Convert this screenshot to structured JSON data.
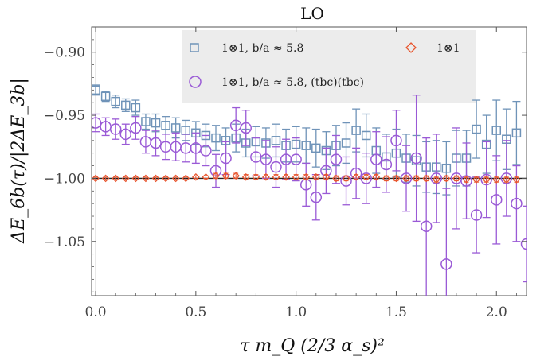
{
  "chart_data": {
    "type": "scatter",
    "title": "LO",
    "xlabel": "τ m_Q (2/3 α_s)²",
    "ylabel": "ΔE_6b(τ)/|2ΔE_3b|",
    "xlim": [
      -0.02,
      2.15
    ],
    "ylim": [
      -1.093,
      -0.88
    ],
    "x_ticks": [
      {
        "value": 0.0,
        "label": "0.0"
      },
      {
        "value": 0.5,
        "label": "0.5"
      },
      {
        "value": 1.0,
        "label": "1.0"
      },
      {
        "value": 1.5,
        "label": "1.5"
      },
      {
        "value": 2.0,
        "label": "2.0"
      }
    ],
    "y_ticks": [
      {
        "value": -0.9,
        "label": "−0.90"
      },
      {
        "value": -0.95,
        "label": "−0.95"
      },
      {
        "value": -1.0,
        "label": "−1.00"
      },
      {
        "value": -1.05,
        "label": "−1.05"
      }
    ],
    "reference_line": -1.0,
    "legend_position": "top",
    "series": [
      {
        "name": "1⊗1, b/a ≈ 5.8",
        "marker": "square",
        "color": "#6f93b8",
        "x": [
          0.0,
          0.05,
          0.1,
          0.15,
          0.2,
          0.25,
          0.3,
          0.35,
          0.4,
          0.45,
          0.5,
          0.55,
          0.6,
          0.65,
          0.7,
          0.75,
          0.8,
          0.85,
          0.9,
          0.95,
          1.0,
          1.05,
          1.1,
          1.15,
          1.2,
          1.25,
          1.3,
          1.35,
          1.4,
          1.45,
          1.5,
          1.55,
          1.6,
          1.65,
          1.7,
          1.75,
          1.8,
          1.85,
          1.9,
          1.95,
          2.0,
          2.05,
          2.1
        ],
        "y": [
          -0.93,
          -0.935,
          -0.939,
          -0.942,
          -0.944,
          -0.955,
          -0.956,
          -0.958,
          -0.96,
          -0.962,
          -0.964,
          -0.966,
          -0.968,
          -0.97,
          -0.968,
          -0.972,
          -0.971,
          -0.972,
          -0.97,
          -0.974,
          -0.973,
          -0.974,
          -0.976,
          -0.978,
          -0.974,
          -0.972,
          -0.962,
          -0.966,
          -0.978,
          -0.983,
          -0.98,
          -0.984,
          -0.986,
          -0.991,
          -0.991,
          -0.992,
          -0.984,
          -0.984,
          -0.961,
          -0.973,
          -0.962,
          -0.969,
          -0.964
        ],
        "err": [
          0.004,
          0.004,
          0.005,
          0.005,
          0.006,
          0.006,
          0.007,
          0.007,
          0.008,
          0.008,
          0.009,
          0.009,
          0.01,
          0.01,
          0.011,
          0.011,
          0.012,
          0.012,
          0.013,
          0.013,
          0.014,
          0.014,
          0.015,
          0.015,
          0.016,
          0.016,
          0.017,
          0.017,
          0.018,
          0.018,
          0.019,
          0.019,
          0.02,
          0.02,
          0.021,
          0.021,
          0.022,
          0.022,
          0.023,
          0.023,
          0.024,
          0.024,
          0.025
        ]
      },
      {
        "name": "1⊗1, b/a ≈ 5.8, (tbc)(tbc)",
        "marker": "circle",
        "color": "#9a5ad6",
        "x": [
          0.0,
          0.05,
          0.1,
          0.15,
          0.2,
          0.25,
          0.3,
          0.35,
          0.4,
          0.45,
          0.5,
          0.55,
          0.6,
          0.65,
          0.7,
          0.75,
          0.8,
          0.85,
          0.9,
          0.95,
          1.0,
          1.05,
          1.1,
          1.15,
          1.2,
          1.25,
          1.3,
          1.35,
          1.4,
          1.45,
          1.5,
          1.55,
          1.6,
          1.65,
          1.7,
          1.75,
          1.8,
          1.85,
          1.9,
          1.95,
          2.0,
          2.05,
          2.1,
          2.15
        ],
        "y": [
          -0.956,
          -0.959,
          -0.961,
          -0.965,
          -0.96,
          -0.971,
          -0.972,
          -0.975,
          -0.975,
          -0.976,
          -0.976,
          -0.978,
          -0.994,
          -0.984,
          -0.958,
          -0.96,
          -0.983,
          -0.985,
          -0.991,
          -0.985,
          -0.985,
          -1.005,
          -1.015,
          -0.994,
          -0.985,
          -1.002,
          -0.996,
          -1.0,
          -0.985,
          -0.989,
          -0.97,
          -1.0,
          -0.984,
          -1.038,
          -1.0,
          -1.068,
          -1.0,
          -1.002,
          -1.029,
          -1.001,
          -1.017,
          -1.0,
          -1.02,
          -1.052
        ],
        "err": [
          0.007,
          0.007,
          0.008,
          0.008,
          0.009,
          0.009,
          0.01,
          0.01,
          0.011,
          0.011,
          0.012,
          0.012,
          0.013,
          0.013,
          0.014,
          0.014,
          0.015,
          0.015,
          0.016,
          0.016,
          0.017,
          0.017,
          0.018,
          0.018,
          0.019,
          0.019,
          0.02,
          0.02,
          0.022,
          0.022,
          0.024,
          0.026,
          0.05,
          0.07,
          0.035,
          0.06,
          0.04,
          0.03,
          0.03,
          0.03,
          0.035,
          0.03,
          0.03,
          0.03
        ]
      },
      {
        "name": "1⊗1",
        "marker": "diamond",
        "color": "#e8552e",
        "x": [
          0.0,
          0.05,
          0.1,
          0.15,
          0.2,
          0.25,
          0.3,
          0.35,
          0.4,
          0.45,
          0.5,
          0.55,
          0.6,
          0.65,
          0.7,
          0.75,
          0.8,
          0.85,
          0.9,
          0.95,
          1.0,
          1.05,
          1.1,
          1.15,
          1.2,
          1.25,
          1.3,
          1.35,
          1.4,
          1.45,
          1.5,
          1.55,
          1.6,
          1.65,
          1.7,
          1.75,
          1.8,
          1.85,
          1.9,
          1.95,
          2.0,
          2.05,
          2.1
        ],
        "y": [
          -1.0,
          -1.0,
          -1.0,
          -1.0,
          -1.0,
          -1.0,
          -1.0,
          -1.0,
          -1.0,
          -1.0,
          -0.999,
          -0.999,
          -0.998,
          -0.998,
          -0.998,
          -0.999,
          -0.999,
          -0.999,
          -0.999,
          -0.999,
          -0.999,
          -0.999,
          -0.999,
          -0.999,
          -1.0,
          -1.0,
          -0.999,
          -0.999,
          -0.999,
          -1.0,
          -1.0,
          -1.0,
          -1.0,
          -1.0,
          -1.001,
          -1.0,
          -1.0,
          -1.001,
          -1.001,
          -1.001,
          -1.001,
          -1.001,
          -1.001
        ],
        "err": [
          0.001,
          0.001,
          0.001,
          0.001,
          0.001,
          0.001,
          0.001,
          0.001,
          0.001,
          0.001,
          0.001,
          0.001,
          0.002,
          0.002,
          0.002,
          0.002,
          0.002,
          0.002,
          0.002,
          0.002,
          0.002,
          0.002,
          0.002,
          0.002,
          0.002,
          0.002,
          0.002,
          0.002,
          0.002,
          0.002,
          0.002,
          0.002,
          0.002,
          0.002,
          0.002,
          0.002,
          0.002,
          0.002,
          0.002,
          0.002,
          0.002,
          0.002,
          0.002
        ]
      }
    ]
  }
}
